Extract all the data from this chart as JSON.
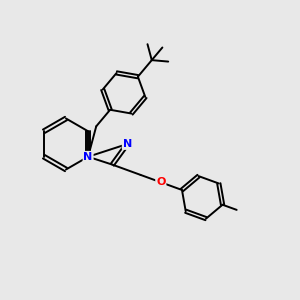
{
  "background_color": "#e8e8e8",
  "bond_color": "#000000",
  "N_color": "#0000ff",
  "O_color": "#ff0000",
  "line_width": 1.4,
  "figsize": [
    3.0,
    3.0
  ],
  "dpi": 100,
  "xlim": [
    0,
    10
  ],
  "ylim": [
    0,
    10
  ]
}
